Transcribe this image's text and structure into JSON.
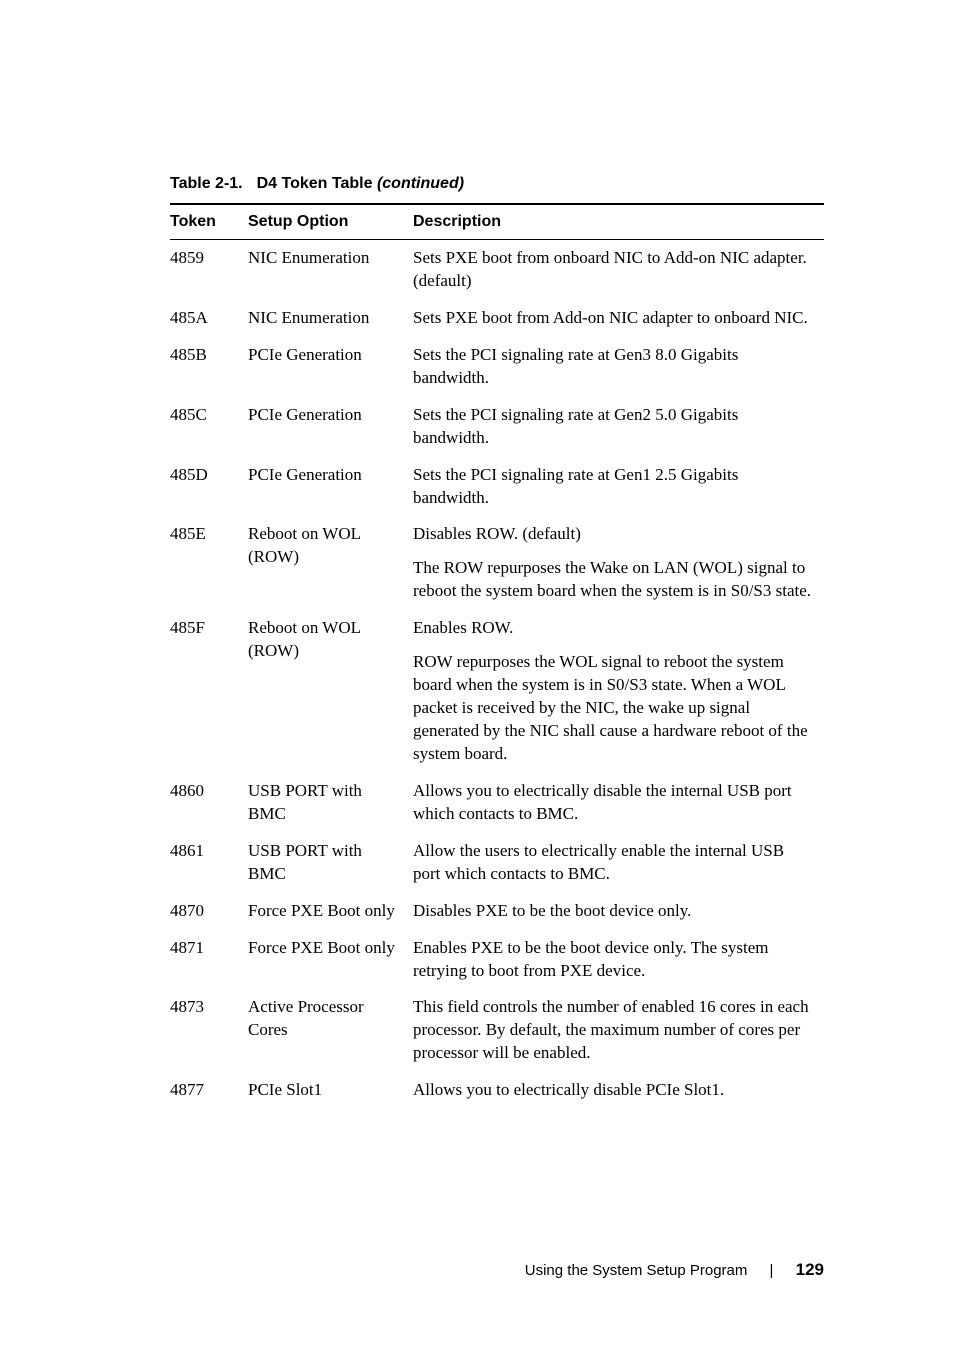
{
  "caption": {
    "number": "Table 2-1.",
    "title": "D4 Token Table",
    "cont": "(continued)"
  },
  "headers": {
    "token": "Token",
    "option": "Setup Option",
    "desc": "Description"
  },
  "rows": [
    {
      "token": "4859",
      "option": "NIC Enumeration",
      "desc": "Sets PXE boot from onboard NIC to Add-on NIC adapter. (default)"
    },
    {
      "token": "485A",
      "option": "NIC Enumeration",
      "desc": "Sets PXE boot from Add-on NIC adapter to onboard NIC."
    },
    {
      "token": "485B",
      "option": "PCIe Generation",
      "desc": "Sets the PCI signaling rate at Gen3 8.0 Gigabits bandwidth."
    },
    {
      "token": "485C",
      "option": "PCIe Generation",
      "desc": "Sets the PCI signaling rate at Gen2 5.0 Gigabits bandwidth."
    },
    {
      "token": "485D",
      "option": "PCIe Generation",
      "desc": "Sets the PCI signaling rate at Gen1 2.5 Gigabits bandwidth."
    },
    {
      "token": "485E",
      "option": "Reboot on WOL (ROW)",
      "desc": "Disables ROW. (default)",
      "desc2": "The ROW repurposes the Wake on LAN (WOL) signal to reboot the system board when the system is in S0/S3 state."
    },
    {
      "token": "485F",
      "option": "Reboot on WOL (ROW)",
      "desc": "Enables ROW.",
      "desc2": "ROW repurposes the WOL signal to reboot the system board when the system is in S0/S3 state. When a WOL packet is received by the NIC, the wake up signal generated by the NIC shall cause a hardware reboot of the system board."
    },
    {
      "token": "4860",
      "option": "USB PORT with BMC",
      "desc": "Allows you to electrically disable the internal USB port which contacts to BMC."
    },
    {
      "token": "4861",
      "option": "USB PORT with BMC",
      "desc": "Allow the users to electrically enable the internal USB port which contacts to BMC."
    },
    {
      "token": "4870",
      "option": "Force PXE Boot only",
      "desc": "Disables PXE to be the boot device only."
    },
    {
      "token": "4871",
      "option": "Force PXE Boot only",
      "desc": "Enables PXE to be the boot device only. The system retrying to boot from PXE device."
    },
    {
      "token": "4873",
      "option": "Active Processor Cores",
      "desc": "This field controls the number of enabled 16 cores in each processor. By default, the maximum number of cores per processor will be enabled."
    },
    {
      "token": "4877",
      "option": "PCIe Slot1",
      "desc": "Allows you to electrically disable PCIe Slot1."
    }
  ],
  "footer": {
    "text": "Using the System Setup Program",
    "divider": "|",
    "page": "129"
  }
}
